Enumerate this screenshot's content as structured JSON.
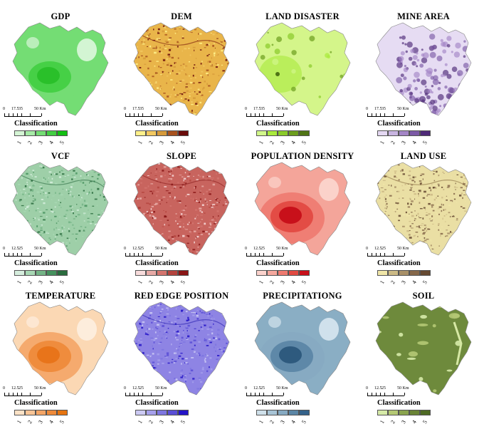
{
  "panels": [
    {
      "id": "gdp",
      "title": "GDP",
      "base": "#74dd74",
      "accent": "#2ac02a",
      "light": "#d8f5d8",
      "classes": [
        "#d5f5d5",
        "#a6eaa6",
        "#74dd74",
        "#43cf43",
        "#13c013"
      ],
      "scale": [
        "0",
        "17.5",
        "35",
        "50 Km"
      ],
      "texture": "smooth"
    },
    {
      "id": "dem",
      "title": "DEM",
      "base": "#e9b54a",
      "accent": "#7a1a0c",
      "light": "#fff39a",
      "classes": [
        "#fff08a",
        "#f2c860",
        "#d69a3a",
        "#a8521e",
        "#6a0c0a"
      ],
      "scale": [
        "0",
        "17.5",
        "35",
        "50 Km"
      ],
      "texture": "rough"
    },
    {
      "id": "land-disaster",
      "title": "LAND DISASTER",
      "base": "#d4f58a",
      "accent": "#7fc230",
      "light": "#eefcb8",
      "classes": [
        "#d2f78a",
        "#a9ea3c",
        "#8acb2a",
        "#6c9e1e",
        "#4f7415"
      ],
      "scale": [
        "0",
        "17.5",
        "35",
        "50 Km"
      ],
      "texture": "spots"
    },
    {
      "id": "mine-area",
      "title": "MINE AREA",
      "base": "#e6dcf3",
      "accent": "#6a3a90",
      "light": "#f2ecf8",
      "classes": [
        "#e4d8f2",
        "#c8b4e0",
        "#a486c6",
        "#7c5aa6",
        "#4e2a78"
      ],
      "scale": [
        "0",
        "17.5",
        "35",
        "50 Km"
      ],
      "texture": "dots"
    },
    {
      "id": "vcf",
      "title": "VCF",
      "base": "#9ecfa8",
      "accent": "#2e6e44",
      "light": "#d8eedb",
      "classes": [
        "#d6eede",
        "#a8d8b4",
        "#74b486",
        "#46925e",
        "#2a6c3e"
      ],
      "scale": [
        "0",
        "12.5",
        "25",
        "50 Km"
      ],
      "texture": "rough"
    },
    {
      "id": "slope",
      "title": "SLOPE",
      "base": "#c8645e",
      "accent": "#8a1e1e",
      "light": "#f2c8c0",
      "classes": [
        "#f8dcdc",
        "#e8aaa6",
        "#d4746e",
        "#b4443e",
        "#8a1616"
      ],
      "scale": [
        "0",
        "12.5",
        "25",
        "50 Km"
      ],
      "texture": "rough"
    },
    {
      "id": "population-density",
      "title": "POPULATION DENSITY",
      "base": "#f4a59a",
      "accent": "#c8101a",
      "light": "#fbd4cc",
      "classes": [
        "#fbd2cc",
        "#f5a89e",
        "#ee7a70",
        "#e14a42",
        "#c8101a"
      ],
      "scale": [
        "0",
        "12.5",
        "25",
        "50 Km"
      ],
      "texture": "smooth"
    },
    {
      "id": "land-use",
      "title": "LAND USE",
      "base": "#eadfa4",
      "accent": "#8a7044",
      "light": "#f6f0cc",
      "classes": [
        "#f0e6a8",
        "#ccba86",
        "#a89068",
        "#86684a",
        "#664a32"
      ],
      "scale": [
        "0",
        "12.5",
        "25",
        "50 Km"
      ],
      "texture": "rough"
    },
    {
      "id": "temperature",
      "title": "TEMPERATURE",
      "base": "#fbd8b4",
      "accent": "#e8741a",
      "light": "#fdeede",
      "classes": [
        "#fde2c6",
        "#f8c496",
        "#f4a566",
        "#ee8a3a",
        "#e67410"
      ],
      "scale": [
        "0",
        "12.5",
        "25",
        "50 Km"
      ],
      "texture": "smooth"
    },
    {
      "id": "red-edge-position",
      "title": "RED EDGE POSITION",
      "base": "#8e84e4",
      "accent": "#2a20b0",
      "light": "#c8c2f4",
      "classes": [
        "#cccaf4",
        "#a6a0ec",
        "#7e76e0",
        "#5a4ed6",
        "#2414c8"
      ],
      "scale": [
        "0",
        "12.5",
        "25",
        "50 Km"
      ],
      "texture": "rough"
    },
    {
      "id": "precipitation",
      "title": "PRECIPITATIONG",
      "base": "#8aaec4",
      "accent": "#2e5a7e",
      "light": "#d4e4ee",
      "classes": [
        "#cfe0ea",
        "#a8c4d6",
        "#86aac2",
        "#5c86a6",
        "#34628a"
      ],
      "scale": [
        "0",
        "12.5",
        "25",
        "50 Km"
      ],
      "texture": "smooth"
    },
    {
      "id": "soil",
      "title": "SOIL",
      "base": "#6e8a3c",
      "accent": "#4a6424",
      "light": "#d6e8a4",
      "classes": [
        "#d6eaa8",
        "#b4c874",
        "#8aa44e",
        "#6a8436",
        "#4e6a24"
      ],
      "scale": [
        "0",
        "12.5",
        "25",
        "50 Km"
      ],
      "texture": "patch"
    }
  ],
  "classification_label": "Classification",
  "class_numbers": [
    "1",
    "2",
    "3",
    "4",
    "5"
  ]
}
